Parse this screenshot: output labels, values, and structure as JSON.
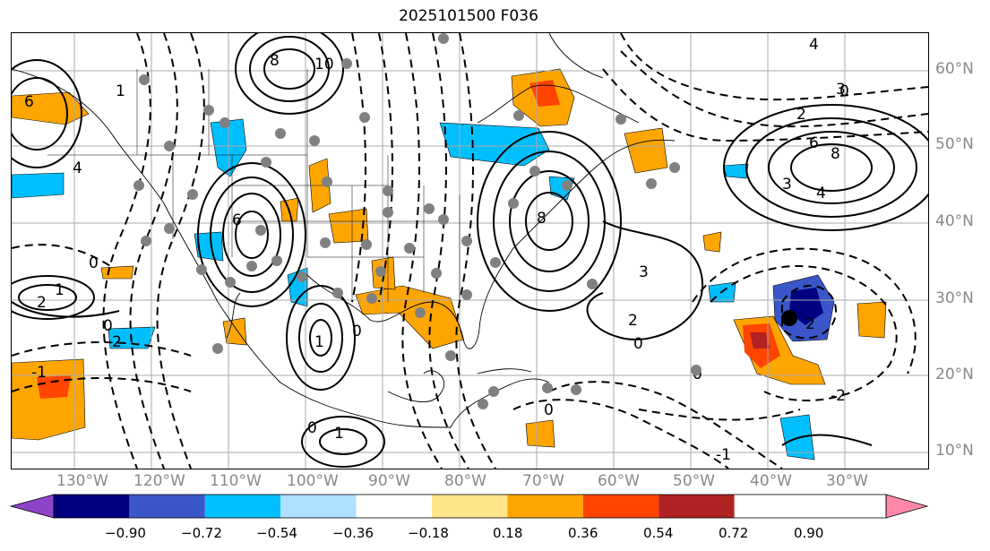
{
  "title": "2025101500 F036",
  "lon_labels": [
    "130°W",
    "120°W",
    "110°W",
    "100°W",
    "90°W",
    "80°W",
    "70°W",
    "60°W",
    "50°W",
    "40°W",
    "30°W"
  ],
  "lat_labels": [
    "60°N",
    "50°N",
    "40°N",
    "30°N",
    "20°N",
    "10°N"
  ],
  "colorbar": {
    "colors": [
      "#8e44c8",
      "#000080",
      "#3a56c8",
      "#00bfff",
      "#aee0ff",
      "#ffffff",
      "#ffe58a",
      "#ffa500",
      "#ff4500",
      "#b22222",
      "#ff88aa"
    ],
    "ticks": [
      "−0.90",
      "−0.72",
      "−0.54",
      "−0.36",
      "−0.18",
      "0.18",
      "0.36",
      "0.54",
      "0.72",
      "0.90"
    ]
  },
  "contour_labels": {
    "l_1": "1",
    "l_2": "2",
    "l_3": "3",
    "l_4": "4",
    "l_6": "6",
    "l_8": "8",
    "l_0": "0",
    "l_m1": "-1",
    "l_m2": "-2",
    "l_6b": "6",
    "l_8b": "8",
    "l_4b": "4",
    "l_3b": "3",
    "l_0b": "0",
    "l_2b": "2",
    "l_1b": "1",
    "l_0c": "0",
    "l_10": "10",
    "l_2c": "2",
    "l_0d": "0",
    "l_3c": "3",
    "l_4c": "4",
    "l_0e": "0",
    "l_1c": "1",
    "l_1d": "1",
    "l_0f": "0",
    "l_m1b": "-1",
    "l_3d": "3",
    "l_2d": "2",
    "l_0g": "0"
  }
}
